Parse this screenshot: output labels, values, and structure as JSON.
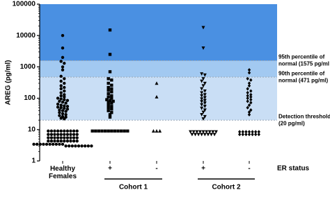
{
  "chart_data": {
    "type": "scatter",
    "y_label": "AREG (pg/ml)",
    "log_scale": true,
    "ylim": [
      1,
      100000
    ],
    "yticks": [
      1,
      10,
      100,
      1000,
      10000,
      100000
    ],
    "categories": [
      "Healthy Females",
      "+",
      "-",
      "+",
      "-"
    ],
    "category_axis_label": "ER status",
    "cohorts": [
      {
        "label": "Cohort 1",
        "categories": [
          1,
          2
        ]
      },
      {
        "label": "Cohort 2",
        "categories": [
          3,
          4
        ]
      }
    ],
    "bands": [
      {
        "from": 1575,
        "to": 100000,
        "color": "#4a90e2"
      },
      {
        "from": 471,
        "to": 1575,
        "color": "#a2c9f1"
      },
      {
        "from": 20,
        "to": 471,
        "color": "#c9def5"
      }
    ],
    "annotations": [
      {
        "value": 1575,
        "lines": [
          "95th percentile of",
          "normal (1575 pg/ml"
        ]
      },
      {
        "value": 471,
        "lines": [
          "90th percentile of",
          "normal (471 pg/ml)"
        ]
      },
      {
        "value": 20,
        "lines": [
          "Detection threshold",
          "(20 pg/ml)"
        ]
      }
    ],
    "series": [
      {
        "category": 0,
        "marker": "circle",
        "color": "#000000",
        "values": [
          10000,
          4000,
          2000,
          1500,
          1300,
          1000,
          800,
          500,
          420,
          350,
          300,
          250,
          220,
          200,
          170,
          150,
          130,
          120,
          110,
          100,
          95,
          90,
          85,
          80,
          75,
          70,
          65,
          60,
          57,
          55,
          52,
          50,
          48,
          45,
          42,
          40,
          38,
          35,
          32,
          30,
          28,
          26,
          25,
          23,
          22,
          9,
          9,
          9,
          9,
          9,
          9,
          9,
          9,
          9,
          9,
          7,
          7,
          7,
          7,
          7,
          7,
          7,
          7,
          7,
          7,
          5.5,
          5.5,
          5.5,
          5.5,
          5.5,
          5.5,
          5.5,
          5.5,
          5.5,
          5.5,
          4.3,
          4.3,
          4.3,
          4.3,
          4.3,
          4.3,
          4.3,
          4.3,
          4.3,
          4.3,
          3.4,
          3.4,
          3.4,
          3.4,
          3.4,
          3.4,
          3.4,
          3.4,
          3.4,
          3.4,
          3,
          3,
          3,
          3,
          3,
          3,
          3,
          3,
          3
        ]
      },
      {
        "category": 1,
        "marker": "square",
        "color": "#000000",
        "values": [
          15000,
          2500,
          700,
          420,
          380,
          300,
          260,
          220,
          200,
          180,
          160,
          140,
          120,
          110,
          100,
          90,
          85,
          80,
          75,
          70,
          62,
          55,
          50,
          45,
          40,
          35,
          30,
          25,
          9,
          9,
          9,
          9,
          9,
          9,
          9,
          9,
          9,
          9,
          9,
          9
        ]
      },
      {
        "category": 2,
        "marker": "triangle",
        "color": "#000000",
        "values": [
          300,
          110,
          9,
          9,
          9
        ]
      },
      {
        "category": 3,
        "marker": "triangle-down",
        "color": "#000000",
        "values": [
          18000,
          4000,
          600,
          550,
          420,
          350,
          300,
          250,
          200,
          170,
          150,
          130,
          120,
          105,
          95,
          85,
          78,
          70,
          62,
          55,
          48,
          42,
          36,
          30,
          26,
          22,
          8.5,
          8.5,
          8.5,
          8.5,
          8.5,
          8.5,
          8.5,
          8.5,
          8.5,
          7,
          7,
          7,
          7,
          7,
          7,
          7,
          7
        ]
      },
      {
        "category": 4,
        "marker": "diamond",
        "color": "#000000",
        "values": [
          800,
          650,
          420,
          380,
          300,
          250,
          200,
          170,
          150,
          130,
          120,
          110,
          100,
          90,
          80,
          72,
          60,
          50,
          42,
          36,
          30,
          8.5,
          8.5,
          8.5,
          8.5,
          8.5,
          8.5,
          8.5,
          7,
          7,
          7,
          7,
          7,
          7,
          7
        ]
      }
    ]
  }
}
